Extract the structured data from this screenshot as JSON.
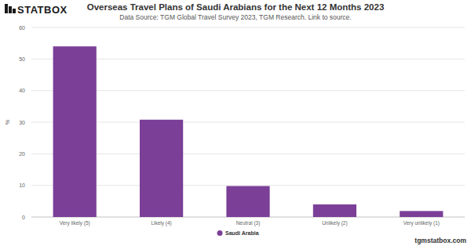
{
  "chart_data": {
    "type": "bar",
    "title": "Overseas Travel Plans of Saudi Arabians for the Next 12 Months 2023",
    "subtitle": "Data Source: TGM Global Travel Survey 2023, TGM Research. Link to source.",
    "y_label": "%",
    "annotations": [
      "STATBOX",
      "tgmstatbox.com"
    ],
    "categories": [
      "Very likely (5)",
      "Likely (4)",
      "Neutral (3)",
      "Unlikely (2)",
      "Very unlikely (1)"
    ],
    "series": [
      {
        "name": "Saudi Arabia",
        "color": "#7b3f98",
        "values": [
          54,
          30.8,
          9.8,
          4,
          1.9
        ]
      }
    ],
    "ylim": [
      0,
      60
    ],
    "yticks": [
      0,
      10,
      20,
      30,
      40,
      50,
      60
    ],
    "grid": true,
    "legend": "bottom"
  }
}
